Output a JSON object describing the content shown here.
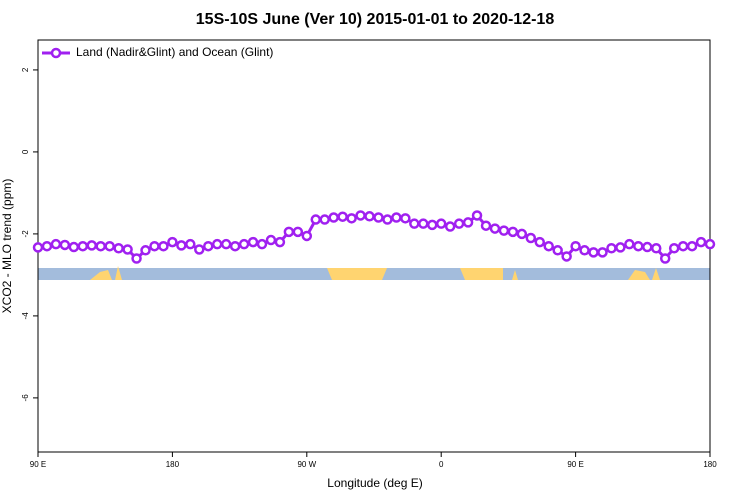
{
  "chart_data": {
    "type": "line",
    "title": "15S-10S June (Ver 10)   2015-01-01 to 2020-12-18",
    "x_label": "Longitude (deg E)",
    "y_label": "XCO2 - MLO trend (ppm)",
    "x": [
      90,
      96,
      102,
      108,
      114,
      120,
      126,
      132,
      138,
      144,
      150,
      156,
      162,
      168,
      174,
      180,
      186,
      192,
      198,
      204,
      210,
      216,
      222,
      228,
      234,
      240,
      246,
      252,
      258,
      264,
      270,
      276,
      282,
      288,
      294,
      300,
      306,
      312,
      318,
      324,
      330,
      336,
      342,
      348,
      354,
      360,
      366,
      372,
      378,
      384,
      390,
      396,
      402,
      408,
      414,
      420,
      426,
      432,
      438,
      444,
      450,
      456,
      462,
      468,
      474,
      480,
      486,
      492,
      498,
      504,
      510,
      516,
      522,
      528,
      534,
      540
    ],
    "series": [
      {
        "name": "Land (Nadir&Glint) and Ocean (Glint)",
        "color": "#a020f0",
        "values": [
          -2.33,
          -2.3,
          -2.25,
          -2.27,
          -2.32,
          -2.3,
          -2.28,
          -2.3,
          -2.3,
          -2.35,
          -2.38,
          -2.6,
          -2.4,
          -2.3,
          -2.3,
          -2.2,
          -2.28,
          -2.25,
          -2.38,
          -2.3,
          -2.25,
          -2.25,
          -2.3,
          -2.25,
          -2.2,
          -2.25,
          -2.15,
          -2.2,
          -1.95,
          -1.95,
          -2.05,
          -1.65,
          -1.65,
          -1.6,
          -1.58,
          -1.62,
          -1.55,
          -1.57,
          -1.6,
          -1.65,
          -1.6,
          -1.62,
          -1.75,
          -1.75,
          -1.78,
          -1.75,
          -1.82,
          -1.75,
          -1.72,
          -1.55,
          -1.8,
          -1.87,
          -1.92,
          -1.95,
          -2.0,
          -2.1,
          -2.2,
          -2.3,
          -2.4,
          -2.55,
          -2.3,
          -2.4,
          -2.45,
          -2.45,
          -2.35,
          -2.33,
          -2.25,
          -2.3,
          -2.32,
          -2.35,
          -2.6,
          -2.35,
          -2.3,
          -2.3,
          -2.2,
          -2.25
        ]
      }
    ],
    "xlim": [
      90,
      540
    ],
    "xticks": [
      {
        "value": 90,
        "label": "90 E"
      },
      {
        "value": 180,
        "label": "180"
      },
      {
        "value": 270,
        "label": "90 W"
      },
      {
        "value": 360,
        "label": "0"
      },
      {
        "value": 450,
        "label": "90 E"
      },
      {
        "value": 540,
        "label": "180"
      }
    ],
    "ylim": [
      -7.32,
      2.73
    ],
    "yticks": [
      -6,
      -4,
      -2,
      0,
      2
    ],
    "legend": "top-left"
  }
}
